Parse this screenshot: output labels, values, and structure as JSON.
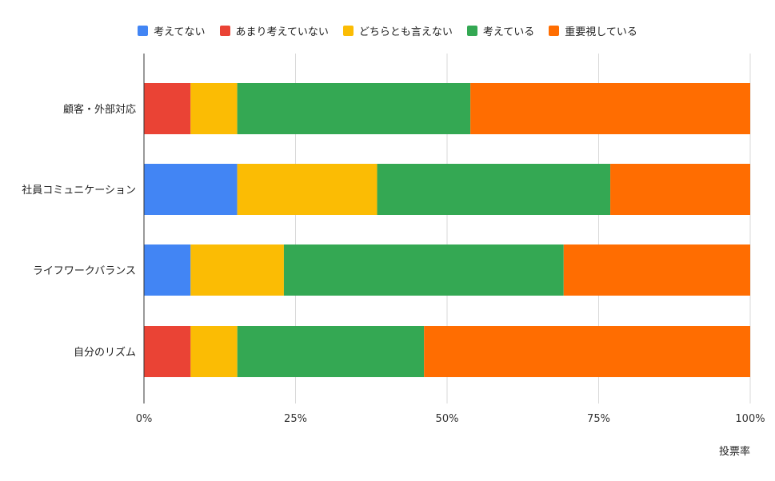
{
  "chart_data": {
    "type": "bar",
    "orientation": "horizontal",
    "stacked": "percent",
    "categories": [
      "顧客・外部対応",
      "社員コミュニケーション",
      "ライフワークバランス",
      "自分のリズム"
    ],
    "series": [
      {
        "name": "考えてない",
        "color": "#4285f4",
        "values": [
          0,
          15.4,
          7.7,
          0
        ]
      },
      {
        "name": "あまり考えていない",
        "color": "#ea4335",
        "values": [
          7.7,
          0,
          0,
          7.7
        ]
      },
      {
        "name": "どちらとも言えない",
        "color": "#fbbc04",
        "values": [
          7.7,
          23.1,
          15.4,
          7.7
        ]
      },
      {
        "name": "考えている",
        "color": "#34a853",
        "values": [
          38.5,
          38.5,
          46.2,
          30.8
        ]
      },
      {
        "name": "重要視している",
        "color": "#ff6d01",
        "values": [
          46.2,
          23.1,
          30.8,
          53.8
        ]
      }
    ],
    "xlabel": "投票率",
    "ylabel": "",
    "xlim": [
      0,
      100
    ],
    "xticks": [
      "0%",
      "25%",
      "50%",
      "75%",
      "100%"
    ],
    "grid": true,
    "legend": "top"
  }
}
